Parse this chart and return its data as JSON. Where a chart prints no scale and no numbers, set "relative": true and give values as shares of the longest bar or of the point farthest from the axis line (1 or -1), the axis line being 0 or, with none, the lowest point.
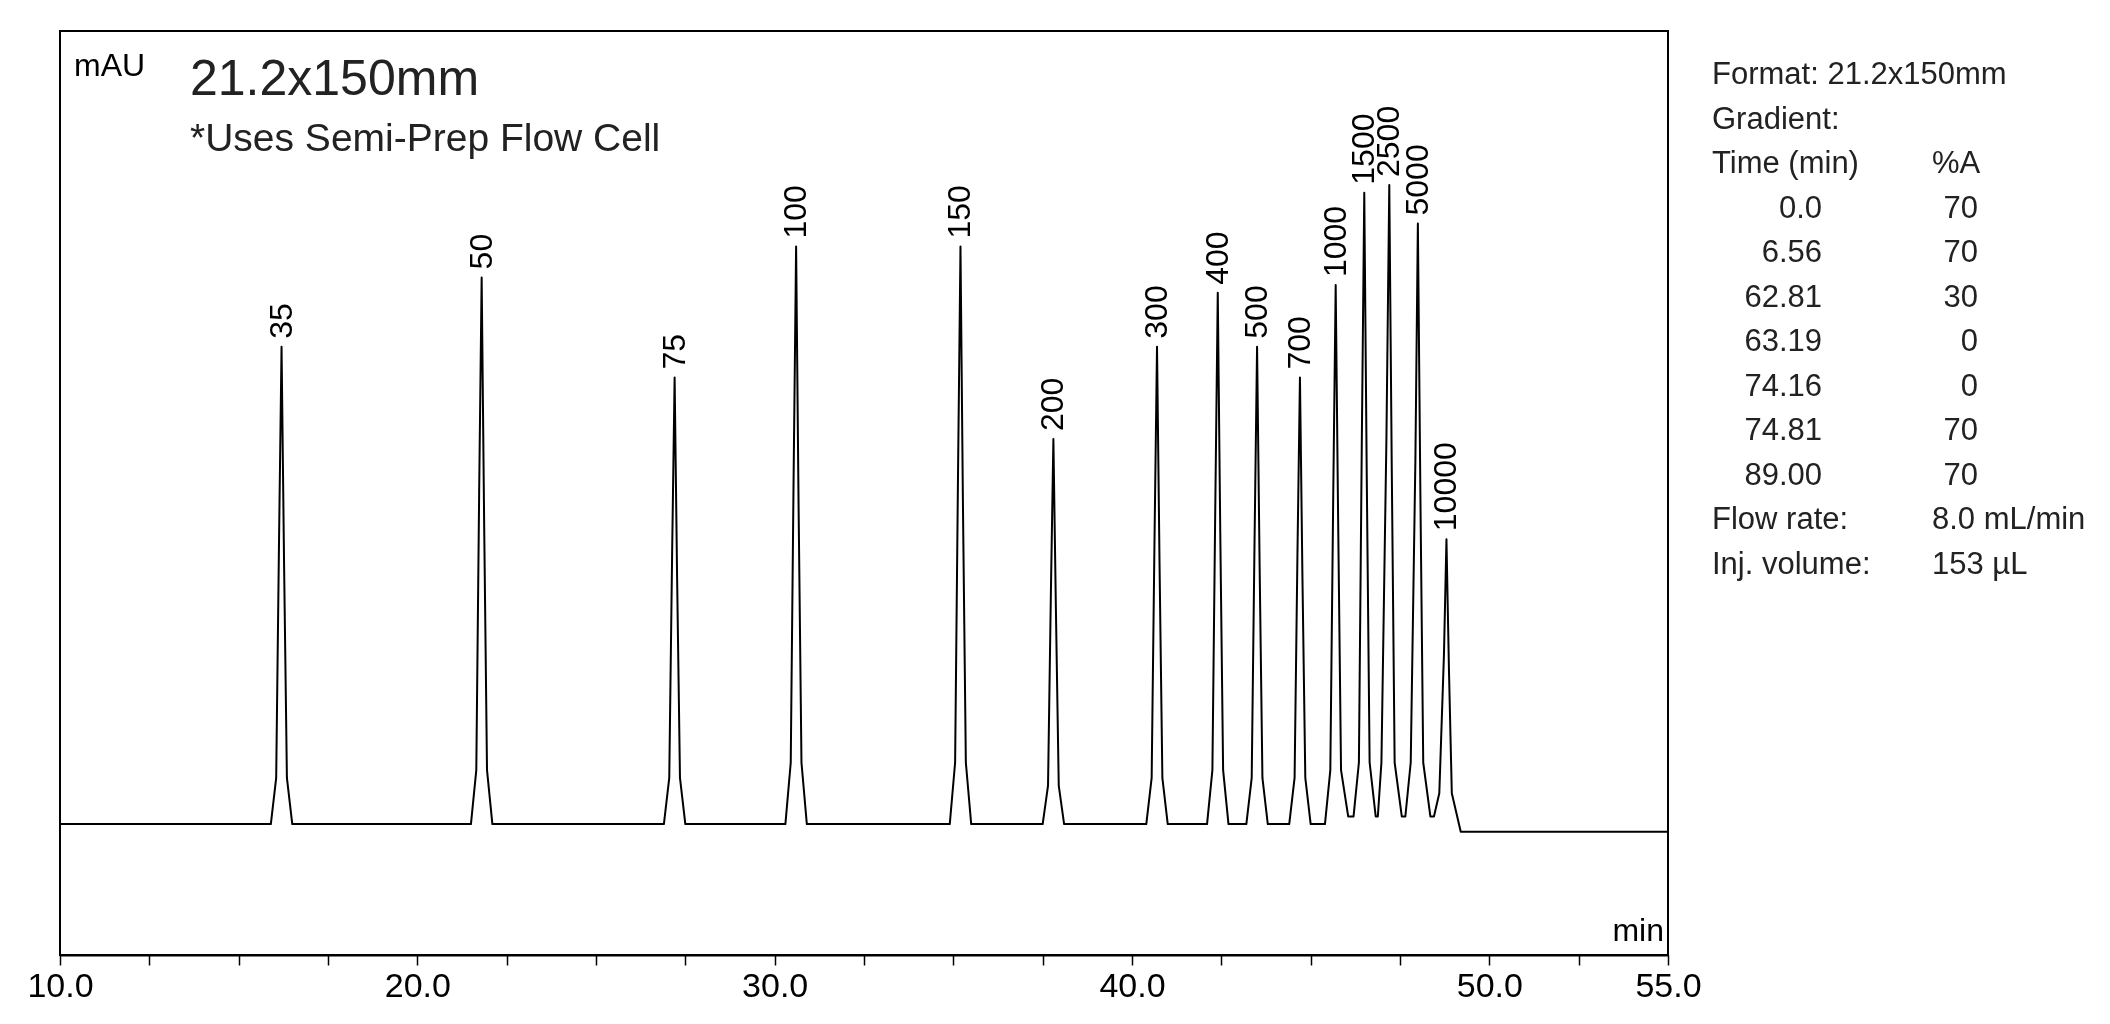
{
  "chart_data": {
    "type": "line",
    "relative": true,
    "title": "21.2x150mm",
    "subtitle": "*Uses Semi-Prep Flow Cell",
    "ylabel": "mAU",
    "xlabel": "min",
    "xlim": [
      10,
      55
    ],
    "xticks": [
      {
        "value": 10,
        "label": "10.0"
      },
      {
        "value": 12.5,
        "label": null
      },
      {
        "value": 15,
        "label": null
      },
      {
        "value": 17.5,
        "label": null
      },
      {
        "value": 20,
        "label": "20.0"
      },
      {
        "value": 22.5,
        "label": null
      },
      {
        "value": 25,
        "label": null
      },
      {
        "value": 27.5,
        "label": null
      },
      {
        "value": 30,
        "label": "30.0"
      },
      {
        "value": 32.5,
        "label": null
      },
      {
        "value": 35,
        "label": null
      },
      {
        "value": 37.5,
        "label": null
      },
      {
        "value": 40,
        "label": "40.0"
      },
      {
        "value": 42.5,
        "label": null
      },
      {
        "value": 45,
        "label": null
      },
      {
        "value": 47.5,
        "label": null
      },
      {
        "value": 50,
        "label": "50.0"
      },
      {
        "value": 52.5,
        "label": null
      },
      {
        "value": 55,
        "label": "55.0"
      }
    ],
    "series": [
      {
        "color": "#000000",
        "x": [
          10,
          15.9,
          16.05,
          16.13,
          16.2,
          16.27,
          16.35,
          16.5,
          21.5,
          21.65,
          21.73,
          21.8,
          21.87,
          21.95,
          22.1,
          26.9,
          27.05,
          27.13,
          27.2,
          27.27,
          27.35,
          27.5,
          30.3,
          30.45,
          30.53,
          30.6,
          30.67,
          30.75,
          30.9,
          34.9,
          35.05,
          35.13,
          35.2,
          35.27,
          35.35,
          35.5,
          37.5,
          37.65,
          37.73,
          37.8,
          37.87,
          37.95,
          38.1,
          40.4,
          40.55,
          40.63,
          40.7,
          40.77,
          40.85,
          41.0,
          42.1,
          42.25,
          42.33,
          42.4,
          42.47,
          42.55,
          42.7,
          43.2,
          43.35,
          43.43,
          43.5,
          43.57,
          43.65,
          43.8,
          44.4,
          44.55,
          44.63,
          44.7,
          44.77,
          44.85,
          45.0,
          45.4,
          45.55,
          45.63,
          45.7,
          45.77,
          45.85,
          46.05,
          46.2,
          46.35,
          46.43,
          46.5,
          46.57,
          46.65,
          46.82,
          46.88,
          46.98,
          47.12,
          47.2,
          47.27,
          47.35,
          47.55,
          47.65,
          47.8,
          47.93,
          48.0,
          48.07,
          48.15,
          48.35,
          48.45,
          48.6,
          48.73,
          48.8,
          48.87,
          48.95,
          49.2,
          55
        ],
        "values": [
          0.17,
          0.17,
          0.23,
          0.54,
          0.79,
          0.51,
          0.23,
          0.17,
          0.17,
          0.24,
          0.6,
          0.88,
          0.56,
          0.24,
          0.17,
          0.17,
          0.23,
          0.52,
          0.75,
          0.49,
          0.23,
          0.17,
          0.17,
          0.25,
          0.62,
          0.92,
          0.58,
          0.25,
          0.17,
          0.17,
          0.25,
          0.62,
          0.92,
          0.58,
          0.25,
          0.17,
          0.17,
          0.22,
          0.47,
          0.67,
          0.45,
          0.22,
          0.17,
          0.17,
          0.23,
          0.54,
          0.79,
          0.51,
          0.23,
          0.17,
          0.17,
          0.24,
          0.58,
          0.86,
          0.55,
          0.24,
          0.17,
          0.17,
          0.23,
          0.54,
          0.79,
          0.51,
          0.23,
          0.17,
          0.17,
          0.23,
          0.52,
          0.75,
          0.49,
          0.23,
          0.17,
          0.17,
          0.24,
          0.59,
          0.87,
          0.56,
          0.24,
          0.18,
          0.18,
          0.25,
          0.66,
          0.99,
          0.62,
          0.25,
          0.18,
          0.18,
          0.25,
          0.67,
          1.0,
          0.63,
          0.25,
          0.18,
          0.18,
          0.25,
          0.64,
          0.95,
          0.6,
          0.25,
          0.18,
          0.18,
          0.21,
          0.39,
          0.54,
          0.37,
          0.21,
          0.16,
          0.16
        ]
      }
    ],
    "annotations": [
      {
        "text": "35",
        "x": 16.2,
        "y": 0.79
      },
      {
        "text": "50",
        "x": 21.8,
        "y": 0.88
      },
      {
        "text": "75",
        "x": 27.2,
        "y": 0.75
      },
      {
        "text": "100",
        "x": 30.6,
        "y": 0.92
      },
      {
        "text": "150",
        "x": 35.2,
        "y": 0.92
      },
      {
        "text": "200",
        "x": 37.8,
        "y": 0.67
      },
      {
        "text": "300",
        "x": 40.7,
        "y": 0.79
      },
      {
        "text": "400",
        "x": 42.4,
        "y": 0.86
      },
      {
        "text": "500",
        "x": 43.5,
        "y": 0.79
      },
      {
        "text": "700",
        "x": 44.7,
        "y": 0.75
      },
      {
        "text": "1000",
        "x": 45.7,
        "y": 0.87
      },
      {
        "text": "1500",
        "x": 46.5,
        "y": 0.99
      },
      {
        "text": "2500",
        "x": 47.2,
        "y": 1.0
      },
      {
        "text": "5000",
        "x": 48.0,
        "y": 0.95
      },
      {
        "text": "10000",
        "x": 48.8,
        "y": 0.54
      },
      "Format: 21.2x150mm",
      "Gradient:",
      "Time (min)",
      "%A",
      "0.0",
      "70",
      "6.56",
      "70",
      "62.81",
      "30",
      "63.19",
      "0",
      "74.16",
      "0",
      "74.81",
      "70",
      "89.00",
      "70",
      "Flow rate:",
      "8.0 mL/min",
      "Inj. volume:",
      "153 µL"
    ]
  }
}
